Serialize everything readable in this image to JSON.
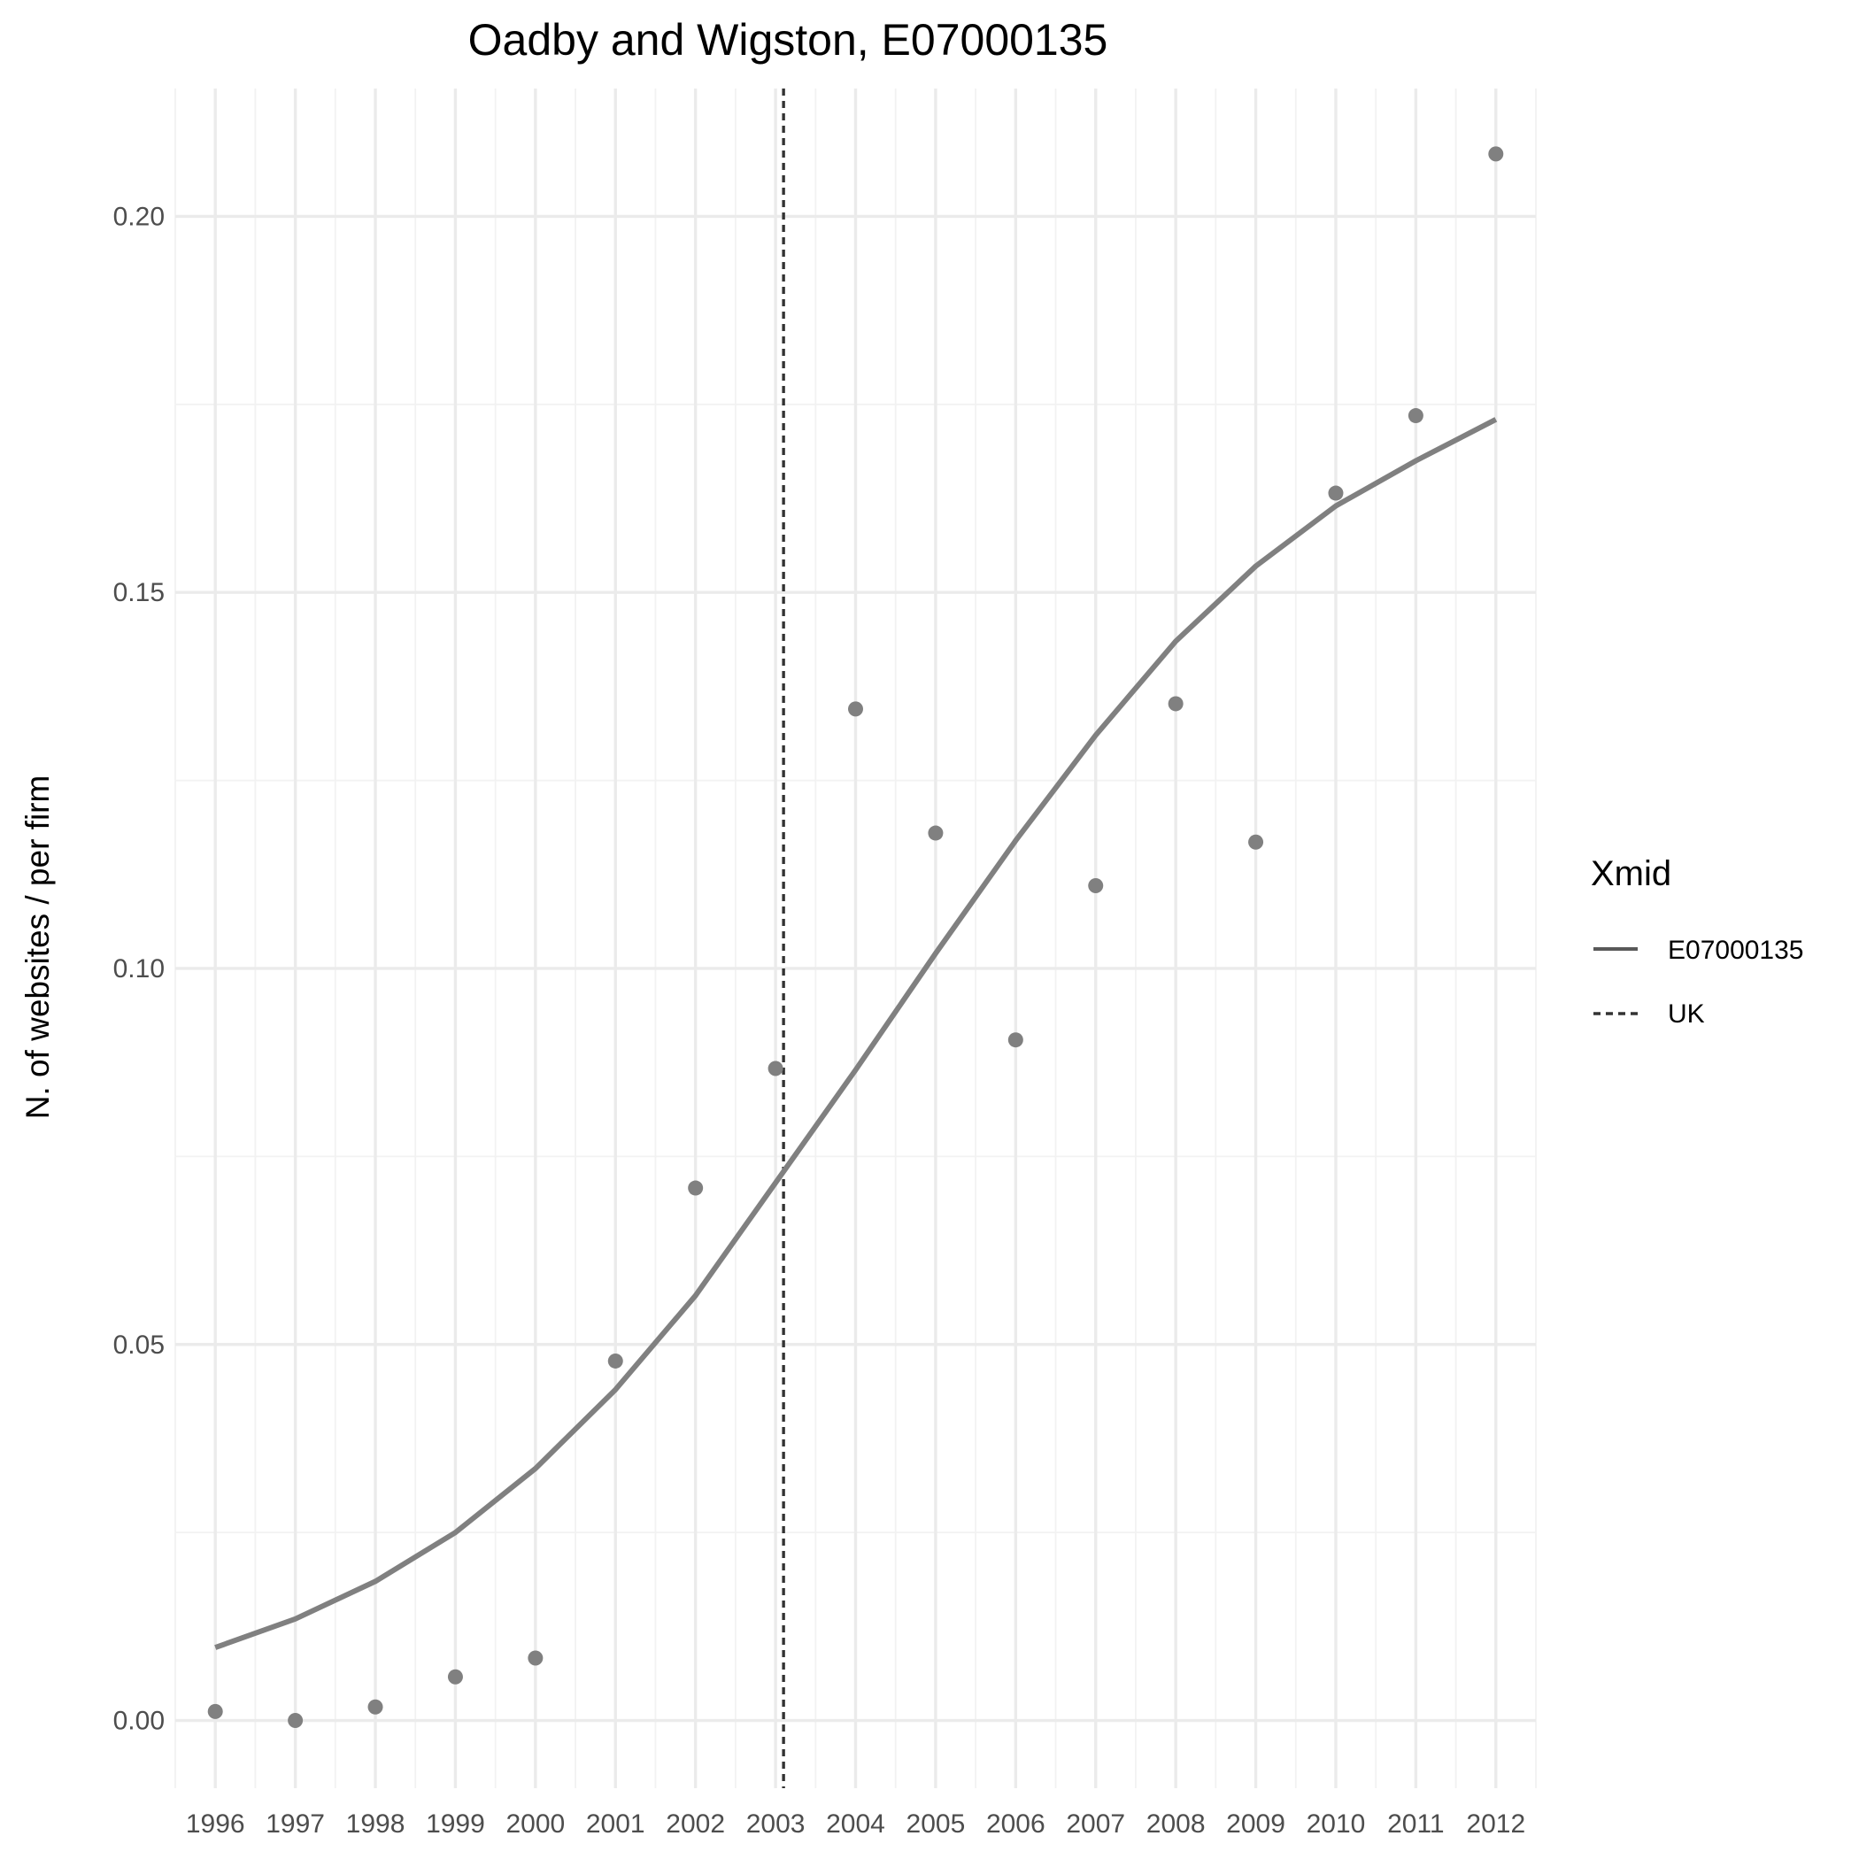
{
  "chart_data": {
    "type": "line",
    "title": "Oadby and Wigston, E07000135",
    "xlabel": "",
    "ylabel": "N. of websites / per firm",
    "categories": [
      "1996",
      "1997",
      "1998",
      "1999",
      "2000",
      "2001",
      "2002",
      "2003",
      "2004",
      "2005",
      "2006",
      "2007",
      "2008",
      "2009",
      "2010",
      "2011",
      "2012"
    ],
    "xlim": [
      1995.5,
      2012.5
    ],
    "ylim": [
      -0.009,
      0.217
    ],
    "y_ticks": [
      0.0,
      0.05,
      0.1,
      0.15,
      0.2
    ],
    "y_tick_labels": [
      "0.00",
      "0.05",
      "0.10",
      "0.15",
      "0.20"
    ],
    "grid": true,
    "points": {
      "x": [
        1996,
        1997,
        1998,
        1999,
        2000,
        2001,
        2002,
        2003,
        2004,
        2005,
        2006,
        2007,
        2008,
        2009,
        2010,
        2011,
        2012
      ],
      "y": [
        0.0012,
        0.0,
        0.0018,
        0.0058,
        0.0083,
        0.0478,
        0.0708,
        0.0867,
        0.1345,
        0.118,
        0.0905,
        0.111,
        0.1352,
        0.1168,
        0.1632,
        0.1735,
        0.2083
      ],
      "color": "#808080"
    },
    "series": [
      {
        "name": "E07000135",
        "style": "solid",
        "color": "#808080",
        "x": [
          1996,
          1997,
          1998,
          1999,
          2000,
          2001,
          2002,
          2003,
          2004,
          2005,
          2006,
          2007,
          2008,
          2009,
          2010,
          2011,
          2012
        ],
        "y": [
          0.0097,
          0.0135,
          0.0185,
          0.025,
          0.0335,
          0.044,
          0.0565,
          0.0715,
          0.0865,
          0.102,
          0.117,
          0.131,
          0.1435,
          0.1535,
          0.1615,
          0.1675,
          0.173
        ]
      }
    ],
    "vlines": [
      {
        "name": "UK",
        "x": 2003.1,
        "style": "dashed",
        "color": "#333333"
      }
    ],
    "legend": {
      "title": "Xmid",
      "position": "right",
      "entries": [
        {
          "label": "E07000135",
          "style": "solid",
          "color": "#595959"
        },
        {
          "label": "UK",
          "style": "dashed",
          "color": "#333333"
        }
      ]
    }
  }
}
